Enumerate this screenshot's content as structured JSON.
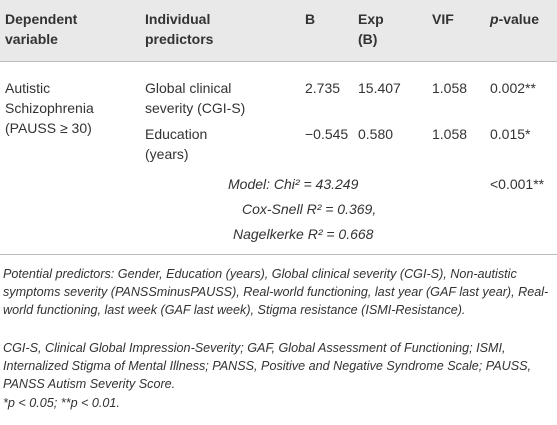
{
  "header": {
    "columns": [
      "Dependent variable",
      "Individual predictors",
      "B",
      "Exp (B)",
      "VIF",
      "p-value"
    ]
  },
  "table": {
    "dependent": "Autistic Schizophrenia (PAUSS ≥ 30)",
    "rows": [
      [
        "Global clinical severity (CGI-S)",
        "2.735",
        "15.407",
        "1.058",
        "0.002**"
      ],
      [
        "Education (years)",
        "−0.545",
        "0.580",
        "1.058",
        "0.015*"
      ]
    ],
    "model": {
      "chi": "Model: Chi² = 43.249",
      "p": "<0.001**",
      "cox": "Cox-Snell R² = 0.369,",
      "nagelkerke": "Nagelkerke R² = 0.668"
    }
  },
  "notes": [
    "Potential predictors: Gender, Education (years), Global clinical severity (CGI-S), Non-autistic symptoms severity (PANSSminusPAUSS), Real-world functioning, last year (GAF last year), Real-world functioning, last week (GAF last week), Stigma resistance (ISMI-Resistance).",
    "CGI-S, Clinical Global Impression-Severity; GAF, Global Assessment of Functioning; ISMI, Internalized Stigma of Mental Illness; PANSS, Positive and Negative Syndrome Scale; PAUSS, PANSS Autism Severity Score.",
    "*p < 0.05; **p < 0.01."
  ]
}
